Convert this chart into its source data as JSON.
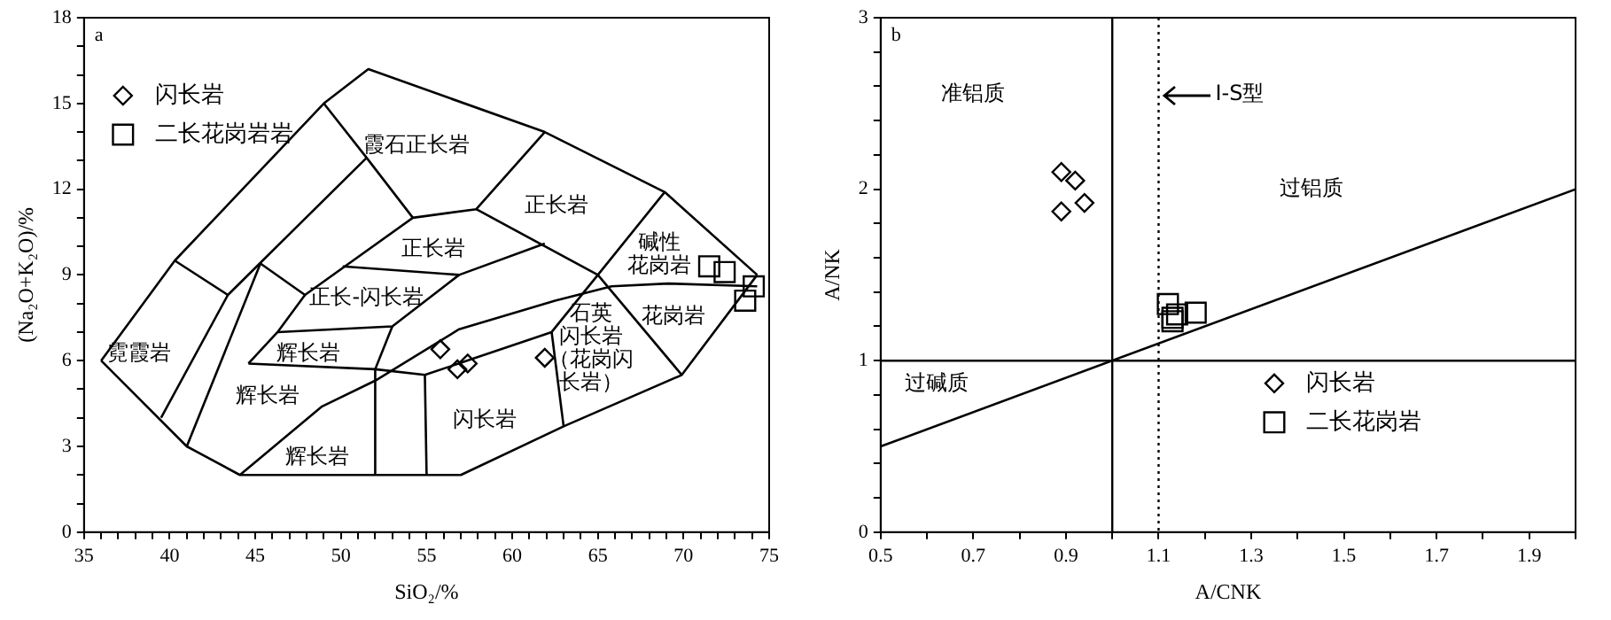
{
  "chart_data": [
    {
      "type": "scatter",
      "title": "a",
      "xlabel": "SiO₂/%",
      "ylabel": "(Na₂O+K₂O)/%",
      "xlim": [
        35,
        75
      ],
      "ylim": [
        0,
        18
      ],
      "xticks": [
        35,
        {
          "value": 36,
          "label": null
        },
        {
          "value": 37,
          "label": null
        },
        {
          "value": 38,
          "label": null
        },
        {
          "value": 39,
          "label": null
        },
        40,
        {
          "value": 41,
          "label": null
        },
        {
          "value": 42,
          "label": null
        },
        {
          "value": 43,
          "label": null
        },
        {
          "value": 44,
          "label": null
        },
        45,
        {
          "value": 46,
          "label": null
        },
        {
          "value": 47,
          "label": null
        },
        {
          "value": 48,
          "label": null
        },
        {
          "value": 49,
          "label": null
        },
        50,
        {
          "value": 51,
          "label": null
        },
        {
          "value": 52,
          "label": null
        },
        {
          "value": 53,
          "label": null
        },
        {
          "value": 54,
          "label": null
        },
        55,
        {
          "value": 56,
          "label": null
        },
        {
          "value": 57,
          "label": null
        },
        {
          "value": 58,
          "label": null
        },
        {
          "value": 59,
          "label": null
        },
        60,
        {
          "value": 61,
          "label": null
        },
        {
          "value": 62,
          "label": null
        },
        {
          "value": 63,
          "label": null
        },
        {
          "value": 64,
          "label": null
        },
        65,
        {
          "value": 66,
          "label": null
        },
        {
          "value": 67,
          "label": null
        },
        {
          "value": 68,
          "label": null
        },
        {
          "value": 69,
          "label": null
        },
        70,
        {
          "value": 71,
          "label": null
        },
        {
          "value": 72,
          "label": null
        },
        {
          "value": 73,
          "label": null
        },
        {
          "value": 74,
          "label": null
        },
        75
      ],
      "yticks": [
        0,
        {
          "value": 1,
          "label": null
        },
        {
          "value": 2,
          "label": null
        },
        3,
        {
          "value": 4,
          "label": null
        },
        {
          "value": 5,
          "label": null
        },
        6,
        {
          "value": 7,
          "label": null
        },
        {
          "value": 8,
          "label": null
        },
        9,
        {
          "value": 10,
          "label": null
        },
        {
          "value": 11,
          "label": null
        },
        12,
        {
          "value": 13,
          "label": null
        },
        {
          "value": 14,
          "label": null
        },
        15,
        {
          "value": 16,
          "label": null
        },
        {
          "value": 17,
          "label": null
        },
        18
      ],
      "grid": false,
      "legend": "top left",
      "series": [
        {
          "name": "闪长岩",
          "color": "#000000",
          "marker": "diamond",
          "x": [
            55.8,
            57.4,
            56.8,
            61.9
          ],
          "values": [
            6.4,
            5.9,
            5.7,
            6.1
          ]
        },
        {
          "name": "二长花岗岩岩",
          "color": "#000000",
          "marker": "square",
          "x": [
            71.5,
            72.4,
            74.1,
            73.6
          ],
          "values": [
            9.3,
            9.1,
            8.6,
            8.1
          ]
        },
        {
          "type": "line",
          "color": "#000000",
          "marker": "none",
          "x": [
            36,
            40.3,
            49,
            51.6,
            61.9,
            68.9,
            74.3
          ],
          "values": [
            6,
            9.5,
            15,
            16.2,
            14,
            11.9,
            9
          ]
        },
        {
          "type": "line",
          "color": "#000000",
          "marker": "none",
          "x": [
            36,
            41,
            44.1,
            57,
            63,
            69.9,
            74.3
          ],
          "values": [
            6,
            3,
            2,
            2,
            3.7,
            5.5,
            9
          ]
        },
        {
          "type": "line",
          "color": "#000000",
          "marker": "none",
          "x": [
            40.3,
            43.4
          ],
          "values": [
            9.5,
            8.3
          ]
        },
        {
          "type": "line",
          "color": "#000000",
          "marker": "none",
          "x": [
            39.5,
            43.4,
            51.5,
            54.2
          ],
          "values": [
            4,
            8.3,
            13.1,
            11
          ]
        },
        {
          "type": "line",
          "color": "#000000",
          "marker": "none",
          "x": [
            49,
            51.5
          ],
          "values": [
            15,
            13.1
          ]
        },
        {
          "type": "line",
          "color": "#000000",
          "marker": "none",
          "x": [
            41,
            45.3
          ],
          "values": [
            3,
            9.4
          ]
        },
        {
          "type": "line",
          "color": "#000000",
          "marker": "none",
          "x": [
            45.3,
            47.9,
            54.2,
            57.9,
            61.9
          ],
          "values": [
            9.4,
            8.3,
            11,
            11.3,
            14
          ]
        },
        {
          "type": "line",
          "color": "#000000",
          "marker": "none",
          "x": [
            57.9,
            65,
            68.9
          ],
          "values": [
            11.3,
            9,
            11.9
          ]
        },
        {
          "type": "line",
          "color": "#000000",
          "marker": "none",
          "x": [
            65,
            69.9
          ],
          "values": [
            9,
            5.5
          ]
        },
        {
          "type": "line",
          "color": "#000000",
          "marker": "none",
          "x": [
            62.3,
            65
          ],
          "values": [
            7,
            9
          ]
        },
        {
          "type": "line",
          "color": "#000000",
          "marker": "none",
          "x": [
            62.3,
            63
          ],
          "values": [
            7,
            3.7
          ]
        },
        {
          "type": "line",
          "color": "#000000",
          "marker": "none",
          "x": [
            44.6,
            46.3,
            47.9
          ],
          "values": [
            5.9,
            7,
            8.3
          ]
        },
        {
          "type": "line",
          "color": "#000000",
          "marker": "none",
          "x": [
            46.3,
            53,
            56.9
          ],
          "values": [
            7,
            7.2,
            9
          ]
        },
        {
          "type": "line",
          "color": "#000000",
          "marker": "none",
          "x": [
            50.1,
            56.9,
            61.9
          ],
          "values": [
            9.3,
            9,
            10.1
          ]
        },
        {
          "type": "line",
          "color": "#000000",
          "marker": "none",
          "x": [
            52,
            52,
            53
          ],
          "values": [
            2,
            5.7,
            7.2
          ]
        },
        {
          "type": "line",
          "color": "#000000",
          "marker": "none",
          "x": [
            44.6,
            52,
            54.9,
            62.3
          ],
          "values": [
            5.9,
            5.7,
            5.5,
            7
          ]
        },
        {
          "type": "line",
          "color": "#000000",
          "marker": "none",
          "x": [
            54.9,
            55
          ],
          "values": [
            5.5,
            2
          ]
        },
        {
          "type": "line",
          "color": "#000000",
          "marker": "none",
          "x": [
            44.1,
            48.9,
            52,
            56.9,
            62.5,
            65.8,
            69.1,
            74.3
          ],
          "values": [
            2,
            4.4,
            5.3,
            7.1,
            8.1,
            8.6,
            8.7,
            8.6
          ]
        }
      ],
      "annotations": [
        "霓霞岩",
        "霞石正长岩",
        "正长岩",
        "正长岩",
        "正长-闪长岩",
        "碱性花岗岩",
        "辉长岩",
        "辉长岩",
        "辉长岩",
        "闪长岩",
        "石英闪长岩（花岗闪长岩）",
        "花岗岩"
      ]
    },
    {
      "type": "scatter",
      "title": "b",
      "xlabel": "A/CNK",
      "ylabel": "A/NK",
      "xlim": [
        0.5,
        2.0
      ],
      "ylim": [
        0,
        3
      ],
      "xticks": [
        0.5,
        {
          "value": 0.6,
          "label": null
        },
        0.7,
        {
          "value": 0.8,
          "label": null
        },
        0.9,
        {
          "value": 1.0,
          "label": null
        },
        1.1,
        {
          "value": 1.2,
          "label": null
        },
        1.3,
        {
          "value": 1.4,
          "label": null
        },
        1.5,
        {
          "value": 1.6,
          "label": null
        },
        1.7,
        {
          "value": 1.8,
          "label": null
        },
        1.9,
        {
          "value": 2.0,
          "label": null
        }
      ],
      "yticks": [
        0,
        {
          "value": 0.2,
          "label": null
        },
        {
          "value": 0.4,
          "label": null
        },
        {
          "value": 0.6,
          "label": null
        },
        {
          "value": 0.8,
          "label": null
        },
        1,
        {
          "value": 1.2,
          "label": null
        },
        {
          "value": 1.4,
          "label": null
        },
        {
          "value": 1.6,
          "label": null
        },
        {
          "value": 1.8,
          "label": null
        },
        2,
        {
          "value": 2.2,
          "label": null
        },
        {
          "value": 2.4,
          "label": null
        },
        {
          "value": 2.6,
          "label": null
        },
        {
          "value": 2.8,
          "label": null
        },
        3
      ],
      "grid": false,
      "legend": "bottom right",
      "series": [
        {
          "name": "闪长岩",
          "color": "#000000",
          "marker": "diamond",
          "x": [
            0.89,
            0.92,
            0.89,
            0.94
          ],
          "values": [
            2.1,
            2.05,
            1.87,
            1.92
          ]
        },
        {
          "name": "二长花岗岩",
          "color": "#000000",
          "marker": "square",
          "x": [
            1.12,
            1.13,
            1.14,
            1.18,
            1.13
          ],
          "values": [
            1.33,
            1.25,
            1.27,
            1.28,
            1.23
          ]
        },
        {
          "type": "line",
          "color": "#000000",
          "marker": "none",
          "x": [
            0.5,
            2.0
          ],
          "values": [
            0.5,
            2.0
          ]
        }
      ],
      "ref_lines": [
        {
          "axis": "x",
          "value": 1
        },
        {
          "axis": "y",
          "value": 1
        },
        {
          "axis": "x",
          "value": 1.1,
          "line_style": "dotted",
          "label": "I-S型"
        }
      ],
      "annotations": [
        "准铝质",
        "过铝质",
        "过碱质"
      ]
    }
  ]
}
